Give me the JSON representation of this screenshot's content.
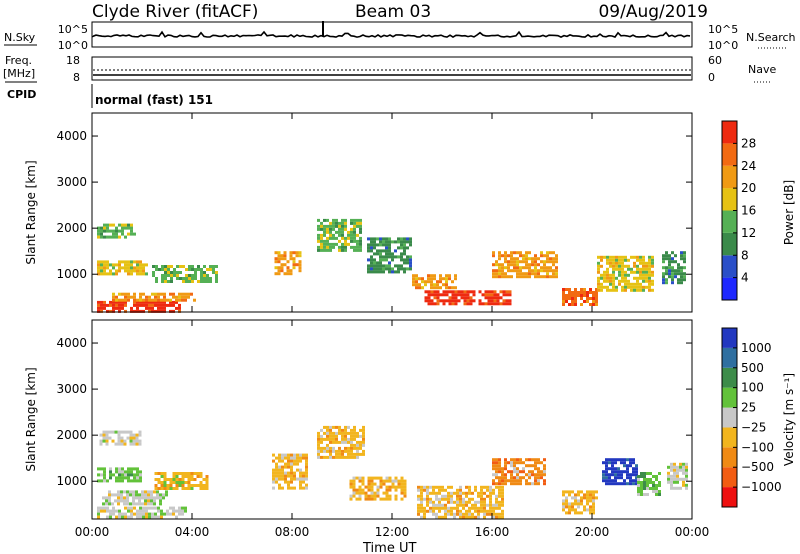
{
  "header": {
    "station": "Clyde River (fitACF)",
    "beam": "Beam 03",
    "date": "09/Aug/2019"
  },
  "strips": {
    "nsky_label": "N.Sky",
    "nsearch_label": "N.Search",
    "noise_ticks": [
      "10^5",
      "10^0"
    ],
    "freq_label": "Freq.",
    "freq_unit": "[MHz]",
    "freq_ticks": [
      "18",
      "8"
    ],
    "nave_label": "Nave",
    "nave_ticks": [
      "60",
      "0"
    ],
    "cpid_label": "CPID",
    "cpid_value": "normal (fast) 151"
  },
  "colors": {
    "power": [
      "#1e28ff",
      "#2a4fc8",
      "#3a8a4a",
      "#55b055",
      "#e6c214",
      "#f09a14",
      "#f26a12",
      "#ee2a10"
    ],
    "velocity": [
      "#ee1010",
      "#f25c12",
      "#f08a14",
      "#f2b51e",
      "#c8c8c8",
      "#62c23a",
      "#3d8c4a",
      "#2f6fa0",
      "#2238c0"
    ]
  },
  "chart_data": [
    {
      "type": "heatmap",
      "title": "Power",
      "ylabel": "Slant Range [km]",
      "xlabel": "Time UT",
      "x_ticks": [
        "00:00",
        "04:00",
        "08:00",
        "12:00",
        "16:00",
        "20:00",
        "00:00"
      ],
      "xlim_hours": [
        0,
        24
      ],
      "y_ticks": [
        1000,
        2000,
        3000,
        4000
      ],
      "ylim": [
        180,
        4500
      ],
      "colorbar": {
        "label": "Power [dB]",
        "ticks": [
          "28",
          "24",
          "20",
          "16",
          "12",
          "8",
          "4"
        ],
        "range": [
          0,
          30
        ]
      },
      "cells": [
        {
          "t0": 0.2,
          "t1": 3.5,
          "r0": 180,
          "r1": 420,
          "v": 28
        },
        {
          "t0": 0.8,
          "t1": 4.2,
          "r0": 420,
          "r1": 600,
          "v": 22
        },
        {
          "t0": 0.2,
          "t1": 2.2,
          "r0": 1000,
          "r1": 1300,
          "v": 18
        },
        {
          "t0": 2.4,
          "t1": 5.0,
          "r0": 800,
          "r1": 1200,
          "v": 14
        },
        {
          "t0": 0.2,
          "t1": 1.8,
          "r0": 1800,
          "r1": 2100,
          "v": 12
        },
        {
          "t0": 7.3,
          "t1": 8.4,
          "r0": 1000,
          "r1": 1500,
          "v": 20
        },
        {
          "t0": 9.0,
          "t1": 10.8,
          "r0": 1500,
          "r1": 2200,
          "v": 14
        },
        {
          "t0": 11.0,
          "t1": 12.8,
          "r0": 1000,
          "r1": 1800,
          "v": 10
        },
        {
          "t0": 13.3,
          "t1": 16.8,
          "r0": 350,
          "r1": 650,
          "v": 28
        },
        {
          "t0": 12.8,
          "t1": 14.6,
          "r0": 700,
          "r1": 1000,
          "v": 20
        },
        {
          "t0": 16.0,
          "t1": 18.6,
          "r0": 900,
          "r1": 1500,
          "v": 20
        },
        {
          "t0": 18.8,
          "t1": 20.2,
          "r0": 300,
          "r1": 700,
          "v": 24
        },
        {
          "t0": 20.2,
          "t1": 22.5,
          "r0": 600,
          "r1": 1400,
          "v": 16
        },
        {
          "t0": 22.8,
          "t1": 23.8,
          "r0": 800,
          "r1": 1500,
          "v": 8
        }
      ]
    },
    {
      "type": "heatmap",
      "title": "Velocity",
      "ylabel": "Slant Range [km]",
      "xlabel": "Time UT",
      "x_ticks": [
        "00:00",
        "04:00",
        "08:00",
        "12:00",
        "16:00",
        "20:00",
        "00:00"
      ],
      "xlim_hours": [
        0,
        24
      ],
      "y_ticks": [
        1000,
        2000,
        3000,
        4000
      ],
      "ylim": [
        180,
        4500
      ],
      "colorbar": {
        "label": "Velocity [m s⁻¹]",
        "ticks": [
          "1000",
          "500",
          "100",
          "25",
          "−25",
          "−100",
          "−500",
          "−1000"
        ],
        "range": [
          -1000,
          1000
        ]
      },
      "cells": [
        {
          "t0": 0.2,
          "t1": 3.8,
          "r0": 180,
          "r1": 450,
          "v": 60
        },
        {
          "t0": 0.4,
          "t1": 3.0,
          "r0": 450,
          "r1": 800,
          "v": 0
        },
        {
          "t0": 0.2,
          "t1": 2.0,
          "r0": 1000,
          "r1": 1300,
          "v": 150
        },
        {
          "t0": 0.3,
          "t1": 2.0,
          "r0": 1800,
          "r1": 2100,
          "v": 0
        },
        {
          "t0": 2.5,
          "t1": 4.6,
          "r0": 800,
          "r1": 1200,
          "v": -120
        },
        {
          "t0": 7.2,
          "t1": 8.6,
          "r0": 800,
          "r1": 1600,
          "v": -250
        },
        {
          "t0": 9.0,
          "t1": 10.9,
          "r0": 1500,
          "r1": 2200,
          "v": -200
        },
        {
          "t0": 10.3,
          "t1": 12.6,
          "r0": 600,
          "r1": 1100,
          "v": -200
        },
        {
          "t0": 13.0,
          "t1": 16.5,
          "r0": 180,
          "r1": 900,
          "v": -250
        },
        {
          "t0": 16.0,
          "t1": 18.2,
          "r0": 900,
          "r1": 1500,
          "v": -350
        },
        {
          "t0": 18.8,
          "t1": 20.2,
          "r0": 300,
          "r1": 800,
          "v": -200
        },
        {
          "t0": 20.4,
          "t1": 21.8,
          "r0": 900,
          "r1": 1500,
          "v": 800
        },
        {
          "t0": 21.8,
          "t1": 22.8,
          "r0": 700,
          "r1": 1200,
          "v": 150
        },
        {
          "t0": 23.0,
          "t1": 23.9,
          "r0": 800,
          "r1": 1400,
          "v": 0
        }
      ]
    }
  ]
}
